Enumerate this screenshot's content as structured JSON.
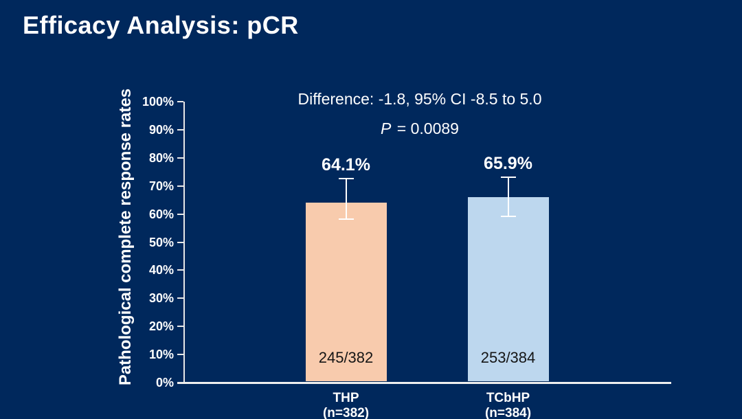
{
  "slide": {
    "title": "Efficacy Analysis: pCR",
    "background_color": "#00285c",
    "accent_text_color": "#ffffff"
  },
  "chart_data": {
    "type": "bar",
    "title": "",
    "xlabel": "",
    "ylabel": "Pathological complete response rates",
    "ylim": [
      0,
      100
    ],
    "ytick_step": 10,
    "yticks": [
      "0%",
      "10%",
      "20%",
      "30%",
      "40%",
      "50%",
      "60%",
      "70%",
      "80%",
      "90%",
      "100%"
    ],
    "grid": false,
    "legend": false,
    "categories": [
      "THP",
      "TCbHP"
    ],
    "category_sublabels": [
      "(n=382)",
      "(n=384)"
    ],
    "series": [
      {
        "name": "pCR rate",
        "values": [
          64.1,
          65.9
        ],
        "value_labels": [
          "64.1%",
          "65.9%"
        ],
        "fraction_labels": [
          "245/382",
          "253/384"
        ],
        "bar_colors": [
          "#F8CBAD",
          "#BDD7EE"
        ],
        "error_bars": [
          {
            "lower": 58.3,
            "upper": 72.6
          },
          {
            "lower": 59.2,
            "upper": 73.2
          }
        ]
      }
    ],
    "annotations": {
      "difference": "Difference: -1.8, 95% CI -8.5 to 5.0",
      "p_symbol": "P",
      "p_value": " = 0.0089"
    },
    "axis_color": "#e8e8e8",
    "error_bar_color": "#ffffff",
    "fraction_label_color": "#151515"
  }
}
